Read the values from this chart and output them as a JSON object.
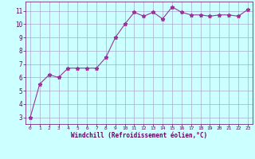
{
  "x": [
    0,
    1,
    2,
    3,
    4,
    5,
    6,
    7,
    8,
    9,
    10,
    11,
    12,
    13,
    14,
    15,
    16,
    17,
    18,
    19,
    20,
    21,
    22,
    23
  ],
  "y": [
    3.0,
    5.5,
    6.2,
    6.0,
    6.7,
    6.7,
    6.7,
    6.7,
    7.5,
    9.0,
    10.0,
    10.9,
    10.6,
    10.9,
    10.4,
    11.3,
    10.9,
    10.7,
    10.7,
    10.6,
    10.7,
    10.7,
    10.6,
    11.1
  ],
  "xlabel": "Windchill (Refroidissement éolien,°C)",
  "xlim": [
    -0.5,
    23.5
  ],
  "ylim": [
    2.5,
    11.7
  ],
  "yticks": [
    3,
    4,
    5,
    6,
    7,
    8,
    9,
    10,
    11
  ],
  "xticks": [
    0,
    1,
    2,
    3,
    4,
    5,
    6,
    7,
    8,
    9,
    10,
    11,
    12,
    13,
    14,
    15,
    16,
    17,
    18,
    19,
    20,
    21,
    22,
    23
  ],
  "line_color": "#993399",
  "marker": "*",
  "bg_color": "#ccffff",
  "grid_color": "#aaaacc",
  "label_color": "#660066",
  "tick_color": "#660066",
  "spine_color": "#660066"
}
